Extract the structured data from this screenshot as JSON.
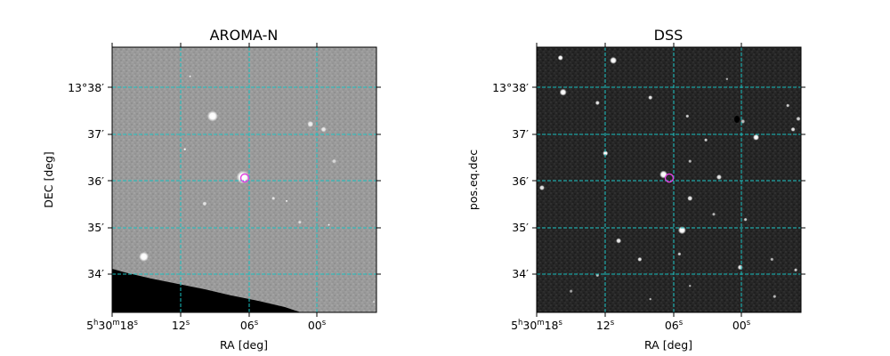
{
  "panels": [
    {
      "title": "AROMA-N",
      "xlabel": "RA [deg]",
      "ylabel": "DEC [deg]",
      "background": "#9a9a9a",
      "ra_ticks": [
        {
          "main": "5",
          "sup1": "h",
          "mid": "30",
          "sup2": "m",
          "sec": "18",
          "sup3": "s"
        },
        {
          "main": "12",
          "sup": "s"
        },
        {
          "main": "06",
          "sup": "s"
        },
        {
          "main": "00",
          "sup": "s"
        }
      ],
      "dec_ticks": [
        "13°38′",
        "37′",
        "36′",
        "35′",
        "34′"
      ],
      "marker_color": "#e040e0",
      "grid_color": "#19c2c2",
      "has_black_wedge": true,
      "stars": [
        {
          "dx": 0.38,
          "dy": 0.26,
          "r": 6.0,
          "brightness": 1.0
        },
        {
          "dx": 0.495,
          "dy": 0.49,
          "r": 7.5,
          "brightness": 1.0
        },
        {
          "dx": 0.12,
          "dy": 0.79,
          "r": 5.5,
          "brightness": 1.0
        },
        {
          "dx": 0.75,
          "dy": 0.29,
          "r": 3.5,
          "brightness": 0.85
        },
        {
          "dx": 0.8,
          "dy": 0.31,
          "r": 3.0,
          "brightness": 0.8
        },
        {
          "dx": 0.35,
          "dy": 0.59,
          "r": 2.5,
          "brightness": 0.75
        },
        {
          "dx": 0.61,
          "dy": 0.57,
          "r": 2.0,
          "brightness": 0.75
        },
        {
          "dx": 0.71,
          "dy": 0.66,
          "r": 2.0,
          "brightness": 0.7
        },
        {
          "dx": 0.275,
          "dy": 0.385,
          "r": 1.5,
          "brightness": 0.95
        },
        {
          "dx": 0.295,
          "dy": 0.11,
          "r": 1.2,
          "brightness": 1.0
        },
        {
          "dx": 0.66,
          "dy": 0.58,
          "r": 1.2,
          "brightness": 1.0
        },
        {
          "dx": 0.82,
          "dy": 0.67,
          "r": 1.2,
          "brightness": 0.95
        },
        {
          "dx": 0.99,
          "dy": 0.96,
          "r": 1.0,
          "brightness": 1.0
        },
        {
          "dx": 0.84,
          "dy": 0.43,
          "r": 2.5,
          "brightness": 0.65
        }
      ]
    },
    {
      "title": "DSS",
      "xlabel": "RA [deg]",
      "ylabel": "pos.eq.dec",
      "background": "#262626",
      "ra_ticks": [
        {
          "main": "5",
          "sup1": "h",
          "mid": "30",
          "sup2": "m",
          "sec": "18",
          "sup3": "s"
        },
        {
          "main": "12",
          "sup": "s"
        },
        {
          "main": "06",
          "sup": "s"
        },
        {
          "main": "00",
          "sup": "s"
        }
      ],
      "dec_ticks": [
        "13°38′",
        "37′",
        "36′",
        "35′",
        "34′"
      ],
      "marker_color": "#e040e0",
      "grid_color": "#19c2c2",
      "has_black_wedge": false,
      "stars": [
        {
          "dx": 0.09,
          "dy": 0.04,
          "r": 3.0,
          "brightness": 1.0
        },
        {
          "dx": 0.29,
          "dy": 0.05,
          "r": 4.0,
          "brightness": 1.0
        },
        {
          "dx": 0.1,
          "dy": 0.17,
          "r": 4.0,
          "brightness": 1.0
        },
        {
          "dx": 0.23,
          "dy": 0.21,
          "r": 2.5,
          "brightness": 0.9
        },
        {
          "dx": 0.43,
          "dy": 0.19,
          "r": 2.5,
          "brightness": 0.9
        },
        {
          "dx": 0.57,
          "dy": 0.26,
          "r": 2.0,
          "brightness": 0.8
        },
        {
          "dx": 0.78,
          "dy": 0.28,
          "r": 2.5,
          "brightness": 0.7
        },
        {
          "dx": 0.95,
          "dy": 0.22,
          "r": 2.0,
          "brightness": 0.8
        },
        {
          "dx": 0.99,
          "dy": 0.27,
          "r": 2.5,
          "brightness": 0.8
        },
        {
          "dx": 0.83,
          "dy": 0.34,
          "r": 3.5,
          "brightness": 1.0
        },
        {
          "dx": 0.97,
          "dy": 0.31,
          "r": 2.5,
          "brightness": 0.9
        },
        {
          "dx": 0.64,
          "dy": 0.35,
          "r": 2.0,
          "brightness": 0.8
        },
        {
          "dx": 0.26,
          "dy": 0.4,
          "r": 3.0,
          "brightness": 1.0
        },
        {
          "dx": 0.48,
          "dy": 0.48,
          "r": 4.5,
          "brightness": 1.0
        },
        {
          "dx": 0.69,
          "dy": 0.49,
          "r": 3.0,
          "brightness": 0.9
        },
        {
          "dx": 0.58,
          "dy": 0.43,
          "r": 2.0,
          "brightness": 0.7
        },
        {
          "dx": 0.02,
          "dy": 0.53,
          "r": 3.0,
          "brightness": 0.9
        },
        {
          "dx": 0.58,
          "dy": 0.57,
          "r": 3.0,
          "brightness": 0.9
        },
        {
          "dx": 0.67,
          "dy": 0.63,
          "r": 2.0,
          "brightness": 0.7
        },
        {
          "dx": 0.79,
          "dy": 0.65,
          "r": 2.0,
          "brightness": 0.8
        },
        {
          "dx": 0.55,
          "dy": 0.69,
          "r": 4.5,
          "brightness": 1.0
        },
        {
          "dx": 0.31,
          "dy": 0.73,
          "r": 3.0,
          "brightness": 0.9
        },
        {
          "dx": 0.39,
          "dy": 0.8,
          "r": 2.5,
          "brightness": 0.9
        },
        {
          "dx": 0.54,
          "dy": 0.78,
          "r": 2.0,
          "brightness": 0.8
        },
        {
          "dx": 0.77,
          "dy": 0.83,
          "r": 3.0,
          "brightness": 0.9
        },
        {
          "dx": 0.89,
          "dy": 0.8,
          "r": 2.0,
          "brightness": 0.7
        },
        {
          "dx": 0.98,
          "dy": 0.84,
          "r": 2.0,
          "brightness": 0.8
        },
        {
          "dx": 0.23,
          "dy": 0.86,
          "r": 2.0,
          "brightness": 0.7
        },
        {
          "dx": 0.13,
          "dy": 0.92,
          "r": 2.0,
          "brightness": 0.6
        },
        {
          "dx": 0.43,
          "dy": 0.95,
          "r": 1.5,
          "brightness": 0.7
        },
        {
          "dx": 0.58,
          "dy": 0.9,
          "r": 1.5,
          "brightness": 0.7
        },
        {
          "dx": 0.9,
          "dy": 0.94,
          "r": 2.0,
          "brightness": 0.7
        },
        {
          "dx": 0.72,
          "dy": 0.12,
          "r": 1.5,
          "brightness": 0.7
        }
      ]
    }
  ]
}
